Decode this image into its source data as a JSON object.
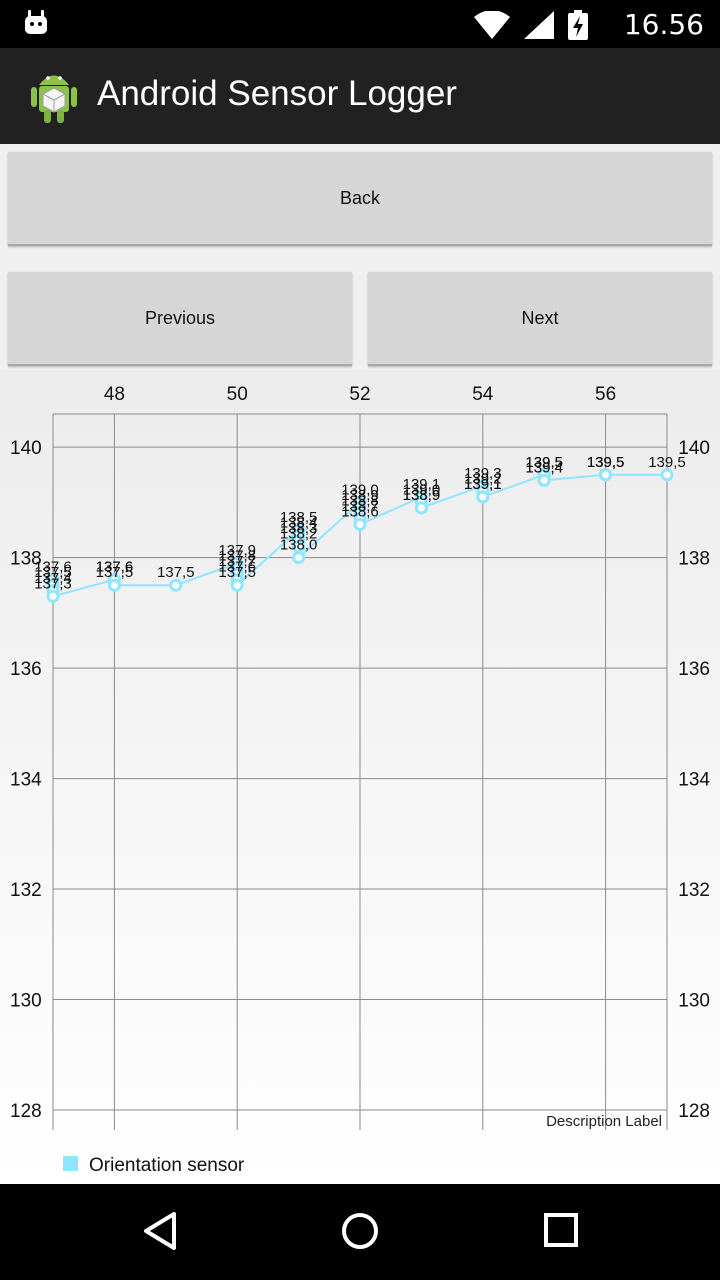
{
  "status_bar": {
    "time": "16.56"
  },
  "action_bar": {
    "title": "Android Sensor Logger"
  },
  "buttons": {
    "back": "Back",
    "previous": "Previous",
    "next": "Next"
  },
  "chart_data": {
    "type": "line",
    "title": "",
    "xlabel": "",
    "ylabel": "",
    "description_label": "Description Label",
    "x_ticks": [
      "48",
      "50",
      "52",
      "54",
      "56"
    ],
    "y_ticks": [
      "128",
      "130",
      "132",
      "134",
      "136",
      "138",
      "140"
    ],
    "xlim": [
      47,
      57
    ],
    "ylim": [
      128,
      140.6
    ],
    "grid": true,
    "legend_position": "bottom-left",
    "series": [
      {
        "name": "Orientation sensor",
        "color": "#8ee6ff",
        "x": [
          47,
          47,
          47,
          47,
          48,
          48,
          48,
          49,
          50,
          50,
          50,
          50,
          50,
          51,
          51,
          51,
          51,
          51,
          52,
          52,
          52,
          52,
          52,
          53,
          53,
          53,
          53,
          54,
          54,
          54,
          54,
          55,
          55,
          55,
          55,
          56,
          56,
          56,
          57
        ],
        "y": [
          137.6,
          137.5,
          137.4,
          137.3,
          137.6,
          137.6,
          137.5,
          137.5,
          137.9,
          137.8,
          137.7,
          137.6,
          137.5,
          138.5,
          138.4,
          138.3,
          138.2,
          138.0,
          139.0,
          138.9,
          138.8,
          138.7,
          138.6,
          139.1,
          139.0,
          138.9,
          138.9,
          139.3,
          139.2,
          139.1,
          139.1,
          139.5,
          139.5,
          139.4,
          139.4,
          139.5,
          139.5,
          139.5,
          139.5
        ],
        "labels": [
          "137,6",
          "137,5",
          "137,4",
          "137,3",
          "137,6",
          "137,6",
          "137,5",
          "137,5",
          "137,9",
          "137,8",
          "137,7",
          "137,6",
          "137,5",
          "138,5",
          "138,4",
          "138,3",
          "138,2",
          "138,0",
          "139,0",
          "138,9",
          "138,8",
          "138,7",
          "138,6",
          "139,1",
          "139,0",
          "138,9",
          "138,9",
          "139,3",
          "139,2",
          "139,1",
          "139,1",
          "139,5",
          "139,5",
          "139,4",
          "139,4",
          "139,5",
          "139,5",
          "139,5",
          "139,5"
        ]
      }
    ]
  }
}
